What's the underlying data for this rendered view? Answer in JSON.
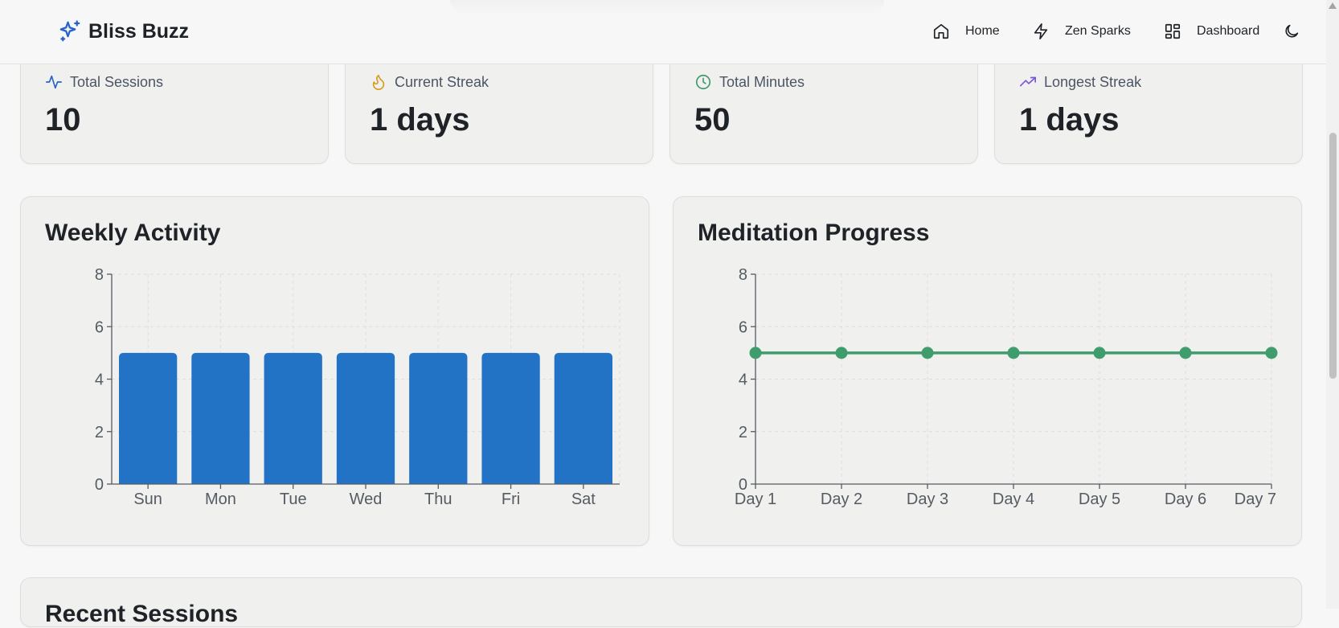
{
  "brand": {
    "name": "Bliss Buzz",
    "icon": "sparkles-icon",
    "accent": "#2563c9"
  },
  "nav": {
    "items": [
      {
        "label": "Home",
        "icon": "home-icon"
      },
      {
        "label": "Zen Sparks",
        "icon": "zap-icon"
      },
      {
        "label": "Dashboard",
        "icon": "dashboard-icon"
      }
    ],
    "theme_toggle_icon": "moon-icon"
  },
  "stats": [
    {
      "label": "Total Sessions",
      "value": "10",
      "icon": "activity-icon",
      "color": "#2563c9"
    },
    {
      "label": "Current Streak",
      "value": "1 days",
      "icon": "flame-icon",
      "color": "#d99a1c"
    },
    {
      "label": "Total Minutes",
      "value": "50",
      "icon": "clock-icon",
      "color": "#3d9a6a"
    },
    {
      "label": "Longest Streak",
      "value": "1 days",
      "icon": "trending-up-icon",
      "color": "#7c55d6"
    }
  ],
  "weekly": {
    "title": "Weekly Activity",
    "color": "#2272c6"
  },
  "progress": {
    "title": "Meditation Progress",
    "color": "#3f9d6d"
  },
  "recent": {
    "title": "Recent Sessions"
  },
  "chart_data": [
    {
      "type": "bar",
      "title": "Weekly Activity",
      "categories": [
        "Sun",
        "Mon",
        "Tue",
        "Wed",
        "Thu",
        "Fri",
        "Sat"
      ],
      "values": [
        5,
        5,
        5,
        5,
        5,
        5,
        5
      ],
      "ylim": [
        0,
        8
      ],
      "yticks": [
        0,
        2,
        4,
        6,
        8
      ],
      "grid": true
    },
    {
      "type": "line",
      "title": "Meditation Progress",
      "categories": [
        "Day 1",
        "Day 2",
        "Day 3",
        "Day 4",
        "Day 5",
        "Day 6",
        "Day 7"
      ],
      "values": [
        5,
        5,
        5,
        5,
        5,
        5,
        5
      ],
      "ylim": [
        0,
        8
      ],
      "yticks": [
        0,
        2,
        4,
        6,
        8
      ],
      "grid": true
    }
  ]
}
